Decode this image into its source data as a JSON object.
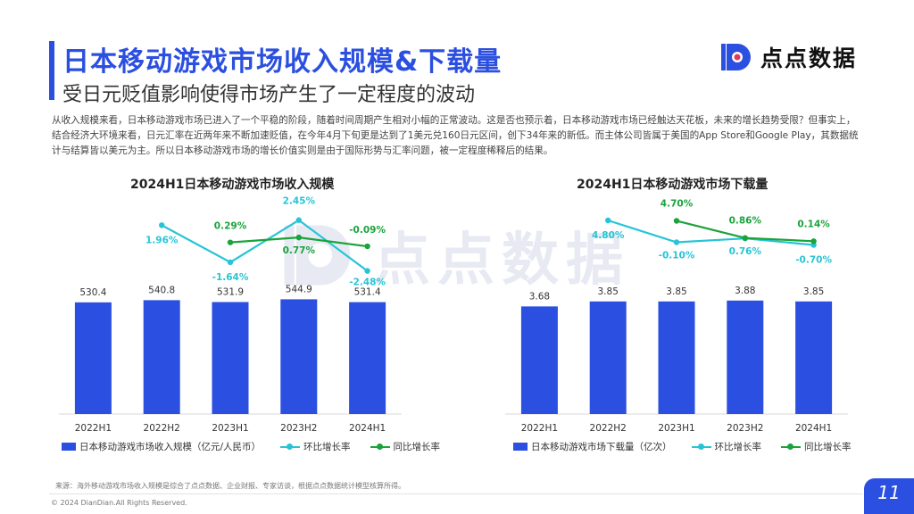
{
  "header": {
    "title": "日本移动游戏市场收入规模&下载量",
    "subtitle": "受日元贬值影响使得市场产生了一定程度的波动",
    "logo_text": "点点数据"
  },
  "description": "从收入规模来看，日本移动游戏市场已进入了一个平稳的阶段，随着时间周期产生相对小幅的正常波动。这是否也预示着，日本移动游戏市场已经触达天花板，未来的增长趋势受限？但事实上，结合经济大环境来看，日元汇率在近两年来不断加速贬值，在今年4月下旬更是达到了1美元兑160日元区间，创下34年来的新低。而主体公司皆属于美国的App Store和Google Play，其数据统计与结算皆以美元为主。所以日本移动游戏市场的增长价值实则是由于国际形势与汇率问题，被一定程度稀释后的结果。",
  "watermark": "点点数据",
  "chart_data": [
    {
      "type": "bar",
      "title": "2024H1日本移动游戏市场收入规模",
      "categories": [
        "2022H1",
        "2022H2",
        "2023H1",
        "2023H2",
        "2024H1"
      ],
      "series": [
        {
          "name": "日本移动游戏市场收入规模（亿元/人民币）",
          "type": "bar",
          "values": [
            530.4,
            540.8,
            531.9,
            544.9,
            531.4
          ],
          "labels": [
            "530.4",
            "540.8",
            "531.9",
            "544.9",
            "531.4"
          ]
        },
        {
          "name": "环比增长率",
          "type": "line",
          "values": [
            null,
            1.96,
            -1.64,
            2.45,
            -2.48
          ],
          "labels": [
            "",
            "1.96%",
            "-1.64%",
            "2.45%",
            "-2.48%"
          ]
        },
        {
          "name": "同比增长率",
          "type": "line",
          "values": [
            null,
            null,
            0.29,
            0.77,
            -0.09
          ],
          "labels": [
            "",
            "",
            "0.29%",
            "0.77%",
            "-0.09%"
          ]
        }
      ],
      "ylim": [
        0,
        1000
      ]
    },
    {
      "type": "bar",
      "title": "2024H1日本移动游戏市场下载量",
      "categories": [
        "2022H1",
        "2022H2",
        "2023H1",
        "2023H2",
        "2024H1"
      ],
      "series": [
        {
          "name": "日本移动游戏市场下载量（亿次）",
          "type": "bar",
          "values": [
            3.68,
            3.85,
            3.85,
            3.88,
            3.85
          ],
          "labels": [
            "3.68",
            "3.85",
            "3.85",
            "3.88",
            "3.85"
          ]
        },
        {
          "name": "环比增长率",
          "type": "line",
          "values": [
            null,
            4.8,
            -0.1,
            0.76,
            -0.7
          ],
          "labels": [
            "",
            "4.80%",
            "-0.10%",
            "0.76%",
            "-0.70%"
          ]
        },
        {
          "name": "同比增长率",
          "type": "line",
          "values": [
            null,
            null,
            4.7,
            0.86,
            0.14
          ],
          "labels": [
            "",
            "",
            "4.70%",
            "0.86%",
            "0.14%"
          ]
        }
      ],
      "ylim": [
        0,
        7.2
      ]
    }
  ],
  "footer": {
    "source": "来源：海外移动游戏市场收入规模是综合了点点数据、企业财报、专家访谈，根据点点数据统计模型核算所得。",
    "copyright": "© 2024 DianDian.All Rights Reserved.",
    "page": "11"
  },
  "colors": {
    "accent": "#2b4fe0",
    "bar": "#2b4fe0",
    "mom_line": "#27c4d6",
    "yoy_line": "#1aa33b"
  }
}
